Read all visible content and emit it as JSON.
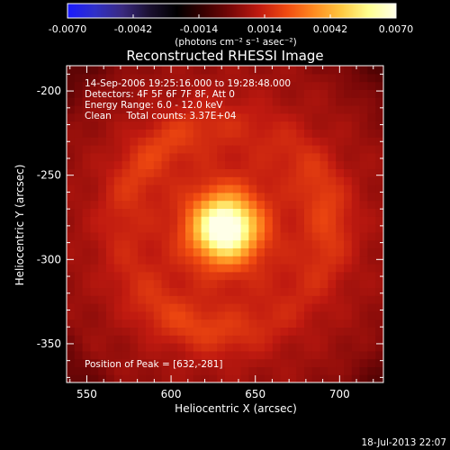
{
  "colorbar": {
    "tick_labels": [
      "-0.0070",
      "-0.0042",
      "-0.0014",
      "0.0014",
      "0.0042",
      "0.0070"
    ],
    "tick_values": [
      -0.007,
      -0.0042,
      -0.0014,
      0.0014,
      0.0042,
      0.007
    ],
    "range": [
      -0.007,
      0.007
    ],
    "units_text": "(photons cm⁻² s⁻¹ asec⁻²)",
    "colors": [
      "#1a1aff",
      "#3030c8",
      "#3a2a80",
      "#1a1030",
      "#000000",
      "#3a0000",
      "#7a0808",
      "#c01a10",
      "#f04a10",
      "#ff8a20",
      "#ffc840",
      "#ffff90",
      "#ffffe8"
    ]
  },
  "chart_data": {
    "type": "heatmap",
    "title": "Reconstructed RHESSI Image",
    "xlabel": "Heliocentric X (arcsec)",
    "ylabel": "Heliocentric Y (arcsec)",
    "xlim": [
      538,
      726
    ],
    "ylim": [
      -373,
      -185
    ],
    "x_ticks": [
      550,
      600,
      650,
      700
    ],
    "y_ticks": [
      -200,
      -250,
      -300,
      -350
    ],
    "x_tick_labels": [
      "550",
      "600",
      "650",
      "700"
    ],
    "y_tick_labels": [
      "-200",
      "-250",
      "-300",
      "-350"
    ],
    "peak": {
      "x": 632,
      "y": -281
    },
    "info_lines": [
      "14-Sep-2006 19:25:16.000 to 19:28:48.000",
      "Detectors: 4F 5F 6F 7F 8F, Att 0",
      "Energy Range: 6.0 - 12.0 keV",
      "Clean     Total counts: 3.37E+04"
    ],
    "peak_label": "Position of Peak = [632,-281]"
  },
  "footer": {
    "date": "18-Jul-2013 22:07"
  }
}
